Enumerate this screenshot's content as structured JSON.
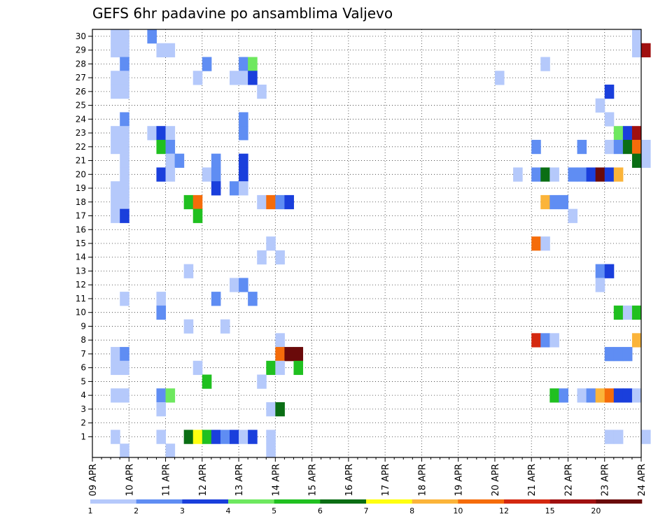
{
  "chart_data": {
    "type": "heatmap",
    "title": "GEFS 6hr padavine po ansamblima Valjevo",
    "xlabel": "",
    "ylabel": "",
    "y_ticks": [
      "1",
      "2",
      "3",
      "4",
      "5",
      "6",
      "7",
      "8",
      "9",
      "10",
      "11",
      "12",
      "13",
      "14",
      "15",
      "16",
      "17",
      "18",
      "19",
      "20",
      "21",
      "22",
      "23",
      "24",
      "25",
      "26",
      "27",
      "28",
      "29",
      "30"
    ],
    "x_ticks": [
      "09 APR",
      "10 APR",
      "11 APR",
      "12 APR",
      "13 APR",
      "14 APR",
      "15 APR",
      "16 APR",
      "17 APR",
      "18 APR",
      "19 APR",
      "20 APR",
      "21 APR",
      "22 APR",
      "23 APR",
      "24 APR"
    ],
    "x_range_days": [
      0,
      15
    ],
    "y_range_members": [
      0,
      30
    ],
    "grid": true,
    "colorbar": {
      "placement": "bottom",
      "labels": [
        "1",
        "2",
        "3",
        "4",
        "5",
        "6",
        "7",
        "8",
        "10",
        "12",
        "15",
        "20"
      ],
      "colors": [
        "#b5c9fb",
        "#5f8df3",
        "#1a3fdc",
        "#6ee85f",
        "#20c020",
        "#0a6e14",
        "#ffff10",
        "#fbb43a",
        "#f56c0a",
        "#d42810",
        "#a01010",
        "#6a0a0a"
      ]
    },
    "cells": [
      [
        30,
        6,
        2
      ],
      [
        30,
        59,
        1
      ],
      [
        30,
        66,
        3
      ],
      [
        30,
        2,
        1
      ],
      [
        30,
        3,
        1
      ],
      [
        29,
        2,
        1
      ],
      [
        29,
        3,
        1
      ],
      [
        29,
        7,
        1
      ],
      [
        29,
        8,
        1
      ],
      [
        29,
        59,
        1
      ],
      [
        29,
        60,
        11
      ],
      [
        28,
        3,
        2
      ],
      [
        28,
        12,
        2
      ],
      [
        28,
        16,
        2
      ],
      [
        28,
        17,
        4
      ],
      [
        28,
        49,
        1
      ],
      [
        27,
        2,
        1
      ],
      [
        27,
        3,
        1
      ],
      [
        27,
        11,
        1
      ],
      [
        27,
        15,
        1
      ],
      [
        27,
        16,
        1
      ],
      [
        27,
        17,
        3
      ],
      [
        27,
        44,
        1
      ],
      [
        26,
        2,
        1
      ],
      [
        26,
        3,
        1
      ],
      [
        26,
        18,
        1
      ],
      [
        26,
        56,
        3
      ],
      [
        25,
        55,
        1
      ],
      [
        24,
        3,
        2
      ],
      [
        24,
        16,
        2
      ],
      [
        24,
        56,
        1
      ],
      [
        23,
        2,
        1
      ],
      [
        23,
        3,
        1
      ],
      [
        23,
        6,
        1
      ],
      [
        23,
        7,
        3
      ],
      [
        23,
        8,
        1
      ],
      [
        23,
        16,
        2
      ],
      [
        23,
        57,
        4
      ],
      [
        23,
        58,
        3
      ],
      [
        23,
        59,
        11
      ],
      [
        22,
        2,
        1
      ],
      [
        22,
        3,
        1
      ],
      [
        22,
        7,
        5
      ],
      [
        22,
        8,
        2
      ],
      [
        22,
        48,
        2
      ],
      [
        22,
        53,
        2
      ],
      [
        22,
        56,
        1
      ],
      [
        22,
        57,
        2
      ],
      [
        22,
        58,
        6
      ],
      [
        22,
        59,
        9
      ],
      [
        22,
        60,
        1
      ],
      [
        21,
        3,
        1
      ],
      [
        21,
        8,
        1
      ],
      [
        21,
        9,
        2
      ],
      [
        21,
        13,
        2
      ],
      [
        21,
        16,
        3
      ],
      [
        21,
        59,
        6
      ],
      [
        21,
        60,
        1
      ],
      [
        20,
        3,
        1
      ],
      [
        20,
        7,
        3
      ],
      [
        20,
        8,
        1
      ],
      [
        20,
        12,
        1
      ],
      [
        20,
        13,
        2
      ],
      [
        20,
        16,
        3
      ],
      [
        20,
        46,
        1
      ],
      [
        20,
        48,
        2
      ],
      [
        20,
        49,
        6
      ],
      [
        20,
        50,
        1
      ],
      [
        20,
        52,
        2
      ],
      [
        20,
        53,
        2
      ],
      [
        20,
        54,
        3
      ],
      [
        20,
        55,
        12
      ],
      [
        20,
        56,
        3
      ],
      [
        20,
        57,
        8
      ],
      [
        19,
        2,
        1
      ],
      [
        19,
        3,
        1
      ],
      [
        19,
        13,
        3
      ],
      [
        19,
        15,
        2
      ],
      [
        19,
        16,
        1
      ],
      [
        18,
        2,
        1
      ],
      [
        18,
        3,
        1
      ],
      [
        18,
        10,
        5
      ],
      [
        18,
        11,
        9
      ],
      [
        18,
        18,
        1
      ],
      [
        18,
        19,
        9
      ],
      [
        18,
        20,
        2
      ],
      [
        18,
        21,
        3
      ],
      [
        18,
        49,
        8
      ],
      [
        18,
        50,
        2
      ],
      [
        18,
        51,
        2
      ],
      [
        17,
        2,
        1
      ],
      [
        17,
        3,
        3
      ],
      [
        17,
        11,
        5
      ],
      [
        17,
        52,
        1
      ],
      [
        15,
        19,
        1
      ],
      [
        15,
        48,
        9
      ],
      [
        15,
        49,
        1
      ],
      [
        14,
        18,
        1
      ],
      [
        14,
        20,
        1
      ],
      [
        13,
        10,
        1
      ],
      [
        13,
        55,
        2
      ],
      [
        13,
        56,
        3
      ],
      [
        12,
        15,
        1
      ],
      [
        12,
        16,
        2
      ],
      [
        12,
        55,
        1
      ],
      [
        11,
        3,
        1
      ],
      [
        11,
        7,
        1
      ],
      [
        11,
        13,
        2
      ],
      [
        11,
        17,
        2
      ],
      [
        10,
        7,
        2
      ],
      [
        10,
        57,
        5
      ],
      [
        10,
        58,
        1
      ],
      [
        10,
        59,
        5
      ],
      [
        9,
        10,
        1
      ],
      [
        9,
        14,
        1
      ],
      [
        8,
        20,
        1
      ],
      [
        8,
        48,
        10
      ],
      [
        8,
        49,
        2
      ],
      [
        8,
        50,
        1
      ],
      [
        8,
        59,
        8
      ],
      [
        7,
        2,
        1
      ],
      [
        7,
        3,
        2
      ],
      [
        7,
        20,
        9
      ],
      [
        7,
        21,
        12
      ],
      [
        7,
        22,
        12
      ],
      [
        7,
        56,
        2
      ],
      [
        7,
        57,
        2
      ],
      [
        7,
        58,
        2
      ],
      [
        6,
        2,
        1
      ],
      [
        6,
        3,
        1
      ],
      [
        6,
        11,
        1
      ],
      [
        6,
        19,
        5
      ],
      [
        6,
        20,
        1
      ],
      [
        6,
        22,
        5
      ],
      [
        5,
        12,
        5
      ],
      [
        5,
        18,
        1
      ],
      [
        4,
        2,
        1
      ],
      [
        4,
        3,
        1
      ],
      [
        4,
        7,
        2
      ],
      [
        4,
        8,
        4
      ],
      [
        4,
        50,
        5
      ],
      [
        4,
        51,
        2
      ],
      [
        4,
        53,
        1
      ],
      [
        4,
        54,
        2
      ],
      [
        4,
        55,
        8
      ],
      [
        4,
        56,
        9
      ],
      [
        4,
        57,
        3
      ],
      [
        4,
        58,
        3
      ],
      [
        4,
        59,
        1
      ],
      [
        3,
        7,
        1
      ],
      [
        3,
        19,
        1
      ],
      [
        3,
        20,
        6
      ],
      [
        1,
        2,
        1
      ],
      [
        1,
        7,
        1
      ],
      [
        1,
        10,
        6
      ],
      [
        1,
        11,
        7
      ],
      [
        1,
        12,
        5
      ],
      [
        1,
        13,
        3
      ],
      [
        1,
        14,
        2
      ],
      [
        1,
        15,
        3
      ],
      [
        1,
        16,
        1
      ],
      [
        1,
        17,
        3
      ],
      [
        1,
        19,
        1
      ],
      [
        1,
        56,
        1
      ],
      [
        1,
        57,
        1
      ],
      [
        1,
        60,
        1
      ],
      [
        0,
        3,
        1
      ],
      [
        0,
        8,
        1
      ],
      [
        0,
        19,
        1
      ]
    ]
  }
}
